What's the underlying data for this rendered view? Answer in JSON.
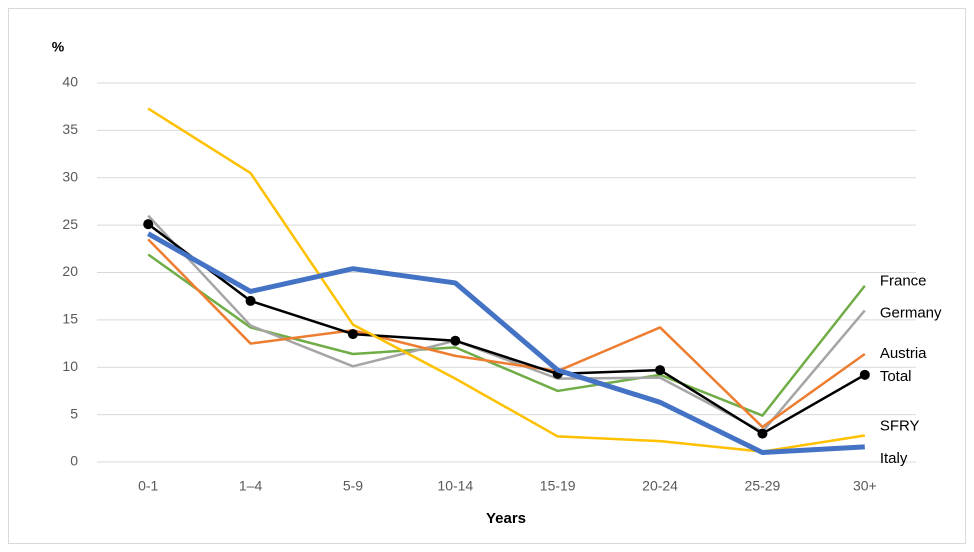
{
  "chart_data": {
    "type": "line",
    "y_label": "%",
    "x_label": "Years",
    "categories": [
      "0-1",
      "1–4",
      "5-9",
      "10-14",
      "15-19",
      "20-24",
      "25-29",
      "30+"
    ],
    "ylim": [
      0,
      40
    ],
    "yticks": [
      0,
      5,
      10,
      15,
      20,
      25,
      30,
      35,
      40
    ],
    "grid": true,
    "series": [
      {
        "name": "France",
        "color": "#70ad47",
        "line_width": 2.5,
        "markers": false,
        "values": [
          21.9,
          14.2,
          11.4,
          12.1,
          7.5,
          9.2,
          4.9,
          18.6
        ]
      },
      {
        "name": "Germany",
        "color": "#a5a5a5",
        "line_width": 2.5,
        "markers": false,
        "values": [
          26,
          14.4,
          10.1,
          12.8,
          8.8,
          8.9,
          3.2,
          16
        ]
      },
      {
        "name": "Austria",
        "color": "#ed7d31",
        "line_width": 2.5,
        "markers": false,
        "values": [
          23.5,
          12.5,
          13.9,
          11.2,
          9.6,
          14.2,
          3.7,
          11.4
        ]
      },
      {
        "name": "Total",
        "color": "#000000",
        "line_width": 2.5,
        "markers": true,
        "values": [
          25.1,
          17,
          13.5,
          12.8,
          9.3,
          9.7,
          3,
          9.2
        ]
      },
      {
        "name": "SFRY",
        "color": "#ffc000",
        "line_width": 2.5,
        "markers": false,
        "values": [
          37.3,
          30.5,
          14.5,
          8.8,
          2.7,
          2.2,
          1.1,
          2.8
        ]
      },
      {
        "name": "Italy",
        "color": "#4472c4",
        "line_width": 5,
        "markers": false,
        "values": [
          24.1,
          18,
          20.4,
          18.9,
          9.7,
          6.3,
          1,
          1.6
        ]
      }
    ]
  }
}
